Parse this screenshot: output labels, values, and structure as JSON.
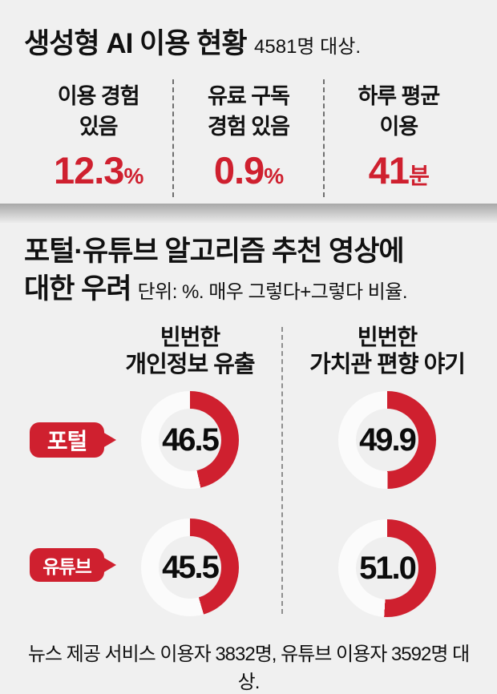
{
  "colors": {
    "background": "#f0f0f0",
    "accent_red": "#cf202f",
    "text_black": "#111111",
    "ring_base": "#fbfbfb",
    "donut_hole": "#efefef"
  },
  "top_section": {
    "title": "생성형 AI 이용 현황",
    "subtitle": "4581명 대상.",
    "stats": [
      {
        "label_line1": "이용 경험",
        "label_line2": "있음",
        "value": "12.3",
        "unit": "%"
      },
      {
        "label_line1": "유료 구독",
        "label_line2": "경험 있음",
        "value": "0.9",
        "unit": "%"
      },
      {
        "label_line1": "하루 평균",
        "label_line2": "이용",
        "value": "41",
        "unit": "분"
      }
    ]
  },
  "bottom_section": {
    "title_line1": "포털·유튜브 알고리즘 추천 영상에",
    "title_line2": "대한 우려",
    "subtitle": "단위: %. 매우 그렇다+그렇다 비율.",
    "column_headers": [
      {
        "line1": "빈번한",
        "line2": "개인정보 유출"
      },
      {
        "line1": "빈번한",
        "line2": "가치관 편향 야기"
      }
    ],
    "rows": [
      {
        "label": "포털",
        "values": [
          "46.5",
          "49.9"
        ]
      },
      {
        "label": "유튜브",
        "values": [
          "45.5",
          "51.0"
        ]
      }
    ],
    "footnote": "뉴스 제공 서비스 이용자 3832명, 유튜브 이용자 3592명 대상."
  },
  "chart_data": [
    {
      "type": "table",
      "title": "생성형 AI 이용 현황",
      "subtitle": "4581명 대상.",
      "items": [
        {
          "label": "이용 경험 있음",
          "value": 12.3,
          "unit": "%"
        },
        {
          "label": "유료 구독 경험 있음",
          "value": 0.9,
          "unit": "%"
        },
        {
          "label": "하루 평균 이용",
          "value": 41,
          "unit": "분"
        }
      ]
    },
    {
      "type": "pie",
      "subtype": "donut-grid",
      "title": "포털·유튜브 알고리즘 추천 영상에 대한 우려",
      "subtitle": "단위: %. 매우 그렇다+그렇다 비율.",
      "categories": [
        "빈번한 개인정보 유출",
        "빈번한 가치관 편향 야기"
      ],
      "series": [
        {
          "name": "포털",
          "values": [
            46.5,
            49.9
          ]
        },
        {
          "name": "유튜브",
          "values": [
            45.5,
            51.0
          ]
        }
      ],
      "value_range": [
        0,
        100
      ],
      "arc_start": "top",
      "arc_direction": "clockwise",
      "legend_position": "left-row-labels",
      "note": "뉴스 제공 서비스 이용자 3832명, 유튜브 이용자 3592명 대상."
    }
  ]
}
